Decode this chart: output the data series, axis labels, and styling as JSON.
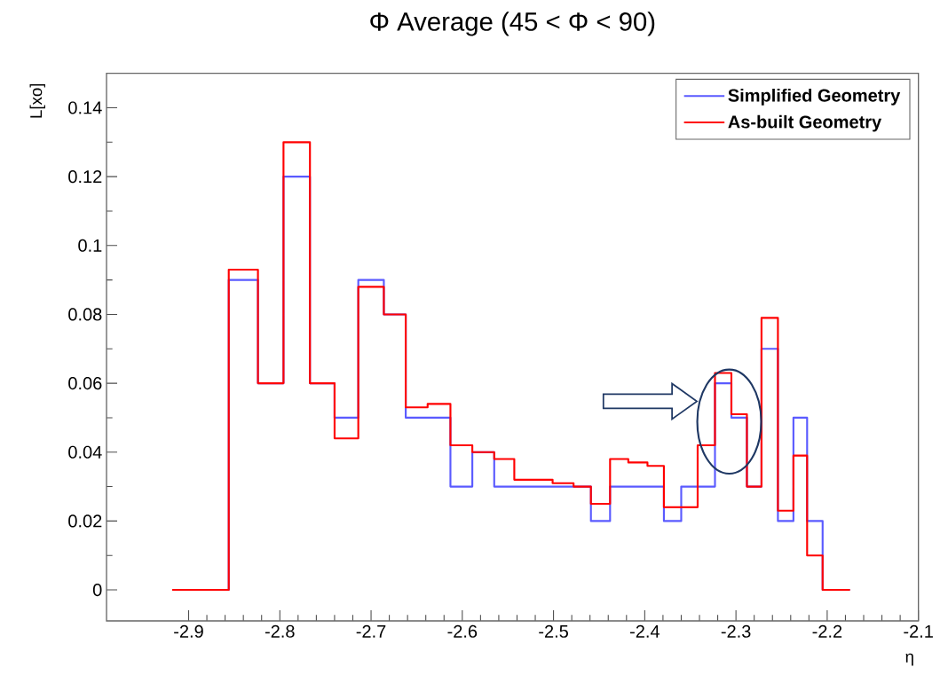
{
  "chart_data": {
    "type": "histogram",
    "title": "Φ Average (45 < Φ < 90)",
    "xlabel": "η",
    "ylabel": "L[xo]",
    "bins": [
      -2.918,
      -2.856,
      -2.824,
      -2.796,
      -2.767,
      -2.74,
      -2.714,
      -2.686,
      -2.662,
      -2.638,
      -2.613,
      -2.589,
      -2.565,
      -2.543,
      -2.521,
      -2.501,
      -2.478,
      -2.459,
      -2.438,
      -2.418,
      -2.397,
      -2.379,
      -2.36,
      -2.342,
      -2.323,
      -2.305,
      -2.288,
      -2.272,
      -2.254,
      -2.237,
      -2.222,
      -2.205,
      -2.175
    ],
    "series": [
      {
        "name": "Simplified Geometry",
        "color": "#5a5aff",
        "values": [
          0,
          0.09,
          0.06,
          0.12,
          0.06,
          0.05,
          0.09,
          0.08,
          0.05,
          0.05,
          0.03,
          0.04,
          0.03,
          0.03,
          0.03,
          0.03,
          0.03,
          0.02,
          0.03,
          0.03,
          0.03,
          0.02,
          0.03,
          0.03,
          0.06,
          0.05,
          0.03,
          0.07,
          0.02,
          0.05,
          0.02,
          0
        ]
      },
      {
        "name": "As-built Geometry",
        "color": "#ff0000",
        "values": [
          0,
          0.093,
          0.06,
          0.13,
          0.06,
          0.044,
          0.088,
          0.08,
          0.053,
          0.054,
          0.042,
          0.04,
          0.038,
          0.032,
          0.032,
          0.031,
          0.03,
          0.025,
          0.038,
          0.037,
          0.036,
          0.024,
          0.024,
          0.042,
          0.063,
          0.051,
          0.03,
          0.079,
          0.023,
          0.039,
          0.01,
          0
        ]
      }
    ],
    "xlim": [
      -2.99,
      -2.1
    ],
    "ylim": [
      -0.009,
      0.15
    ],
    "xticks": [
      -2.9,
      -2.8,
      -2.7,
      -2.6,
      -2.5,
      -2.4,
      -2.3,
      -2.2,
      -2.1
    ],
    "yticks": [
      0,
      0.02,
      0.04,
      0.06,
      0.08,
      0.1,
      0.12,
      0.14
    ],
    "legend": "top right",
    "grid": false,
    "marker": "none",
    "line_style": "solid"
  }
}
